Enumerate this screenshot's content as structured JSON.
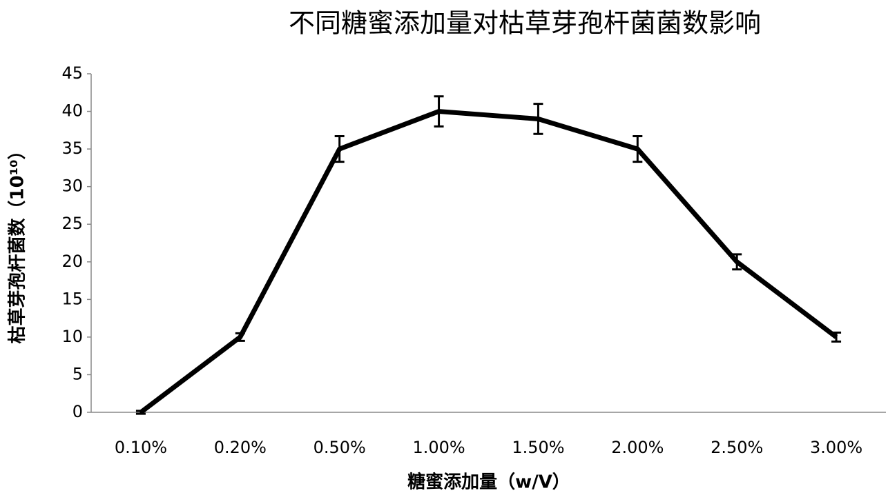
{
  "chart_data": {
    "type": "line",
    "title": "不同糖蜜添加量对枯草芽孢杆菌菌数影响",
    "x_label": "糖蜜添加量（w/V）",
    "y_label": "枯草芽孢杆菌数（10¹⁰）",
    "categories": [
      "0.10%",
      "0.20%",
      "0.50%",
      "1.00%",
      "1.50%",
      "2.00%",
      "2.50%",
      "3.00%"
    ],
    "series": [
      {
        "color": "#000000",
        "values": [
          0,
          10,
          35,
          40,
          39,
          35,
          20,
          10
        ],
        "errors": [
          0.2,
          0.5,
          1.7,
          2,
          2,
          1.7,
          1,
          0.6
        ]
      }
    ],
    "ylim": [
      0,
      45
    ],
    "yticks": [
      0,
      5,
      10,
      15,
      20,
      25,
      30,
      35,
      40,
      45
    ],
    "grid": false
  }
}
